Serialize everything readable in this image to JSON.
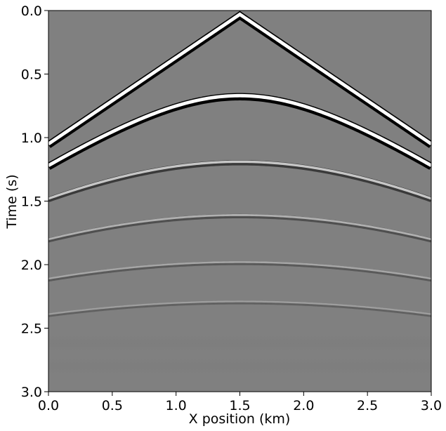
{
  "chart_data": {
    "type": "heatmap",
    "subtype": "seismic shot gather",
    "xlabel": "X position (km)",
    "ylabel": "Time (s)",
    "xlim": [
      0.0,
      3.0
    ],
    "ylim": [
      3.0,
      0.0
    ],
    "y_axis_inverted": true,
    "x_ticks": [
      "0.0",
      "0.5",
      "1.0",
      "1.5",
      "2.0",
      "2.5",
      "3.0"
    ],
    "y_ticks": [
      "0.0",
      "0.5",
      "1.0",
      "1.5",
      "2.0",
      "2.5",
      "3.0"
    ],
    "colormap": "gray",
    "background_color": "#808080",
    "source_x_km": 1.5,
    "direct_wave": {
      "apex_time_s": 0.03,
      "time_at_edges_s": 1.05
    },
    "reflections": [
      {
        "apex_time_s": 0.67,
        "time_at_edges_s": 1.22
      },
      {
        "apex_time_s": 1.19,
        "time_at_edges_s": 1.48
      },
      {
        "apex_time_s": 1.61,
        "time_at_edges_s": 1.8
      },
      {
        "apex_time_s": 1.98,
        "time_at_edges_s": 2.11
      },
      {
        "apex_time_s": 2.29,
        "time_at_edges_s": 2.39
      }
    ],
    "grid": false
  }
}
